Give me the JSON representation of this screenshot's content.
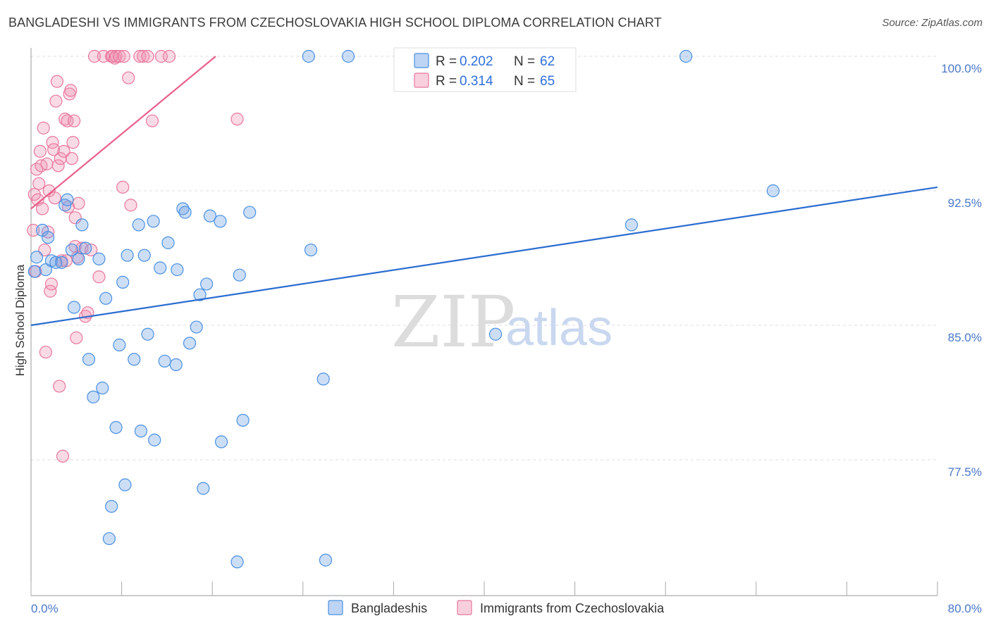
{
  "title": "BANGLADESHI VS IMMIGRANTS FROM CZECHOSLOVAKIA HIGH SCHOOL DIPLOMA CORRELATION CHART",
  "source": "Source: ZipAtlas.com",
  "watermark": {
    "zip": "ZIP",
    "atlas": "atlas"
  },
  "colors": {
    "blue": "#4a90e2",
    "blue_fill": "rgba(110,160,230,0.35)",
    "pink": "#e8789c",
    "pink_fill": "rgba(240,150,180,0.35)",
    "blue_line": "#2a6dd0",
    "pink_line": "#e8608a",
    "grid": "#dcdcdc",
    "tick_text": "#4a78c8"
  },
  "chart_data": {
    "type": "scatter",
    "xlabel": "",
    "ylabel": "High School Diploma",
    "xlim": [
      0,
      80
    ],
    "ylim": [
      71,
      100.7
    ],
    "x_tick_labels": [
      {
        "value": 0,
        "label": "0.0%"
      },
      {
        "value": 80,
        "label": "80.0%"
      }
    ],
    "x_minor_ticks": [
      0,
      8,
      16,
      24,
      32,
      40,
      48,
      56,
      64,
      72,
      80
    ],
    "y_ticks": [
      {
        "value": 100,
        "label": "100.0%"
      },
      {
        "value": 92.5,
        "label": "92.5%"
      },
      {
        "value": 85,
        "label": "85.0%"
      },
      {
        "value": 77.5,
        "label": "77.5%"
      }
    ],
    "legend": {
      "position": "top-center",
      "entries": [
        {
          "series": "blue",
          "r_label": "R =",
          "r_value": "0.202",
          "n_label": "N =",
          "n_value": "62"
        },
        {
          "series": "pink",
          "r_label": "R =",
          "r_value": "0.314",
          "n_label": "N =",
          "n_value": "65"
        }
      ]
    },
    "series": [
      {
        "name": "Bangladeshis",
        "color": "blue",
        "trend": {
          "x0": 0,
          "y0": 85.0,
          "x1": 80,
          "y1": 92.7
        },
        "points": [
          [
            0.3,
            88.0
          ],
          [
            0.5,
            88.8
          ],
          [
            1.0,
            90.3
          ],
          [
            1.3,
            88.1
          ],
          [
            1.5,
            89.9
          ],
          [
            1.8,
            88.6
          ],
          [
            2.2,
            88.5
          ],
          [
            2.7,
            88.5
          ],
          [
            3.0,
            91.7
          ],
          [
            3.2,
            92.0
          ],
          [
            3.6,
            89.2
          ],
          [
            3.8,
            86.0
          ],
          [
            4.2,
            88.7
          ],
          [
            4.5,
            90.6
          ],
          [
            4.8,
            89.3
          ],
          [
            5.1,
            83.1
          ],
          [
            5.5,
            81.0
          ],
          [
            6.0,
            88.7
          ],
          [
            6.3,
            81.5
          ],
          [
            6.6,
            86.5
          ],
          [
            6.9,
            73.1
          ],
          [
            7.1,
            74.9
          ],
          [
            7.5,
            79.3
          ],
          [
            7.8,
            83.9
          ],
          [
            8.1,
            87.4
          ],
          [
            8.3,
            76.1
          ],
          [
            8.5,
            88.9
          ],
          [
            9.1,
            83.1
          ],
          [
            9.5,
            90.6
          ],
          [
            9.7,
            79.1
          ],
          [
            10.0,
            88.9
          ],
          [
            10.3,
            84.5
          ],
          [
            10.8,
            90.8
          ],
          [
            10.9,
            78.6
          ],
          [
            11.4,
            88.2
          ],
          [
            11.8,
            83.0
          ],
          [
            12.1,
            89.6
          ],
          [
            12.8,
            82.8
          ],
          [
            12.9,
            88.1
          ],
          [
            13.4,
            91.5
          ],
          [
            13.6,
            91.3
          ],
          [
            14.0,
            84.0
          ],
          [
            14.6,
            84.9
          ],
          [
            14.9,
            86.7
          ],
          [
            15.2,
            75.9
          ],
          [
            15.5,
            87.3
          ],
          [
            15.8,
            91.1
          ],
          [
            16.7,
            90.8
          ],
          [
            16.8,
            78.5
          ],
          [
            18.2,
            71.8
          ],
          [
            18.4,
            87.8
          ],
          [
            18.7,
            79.7
          ],
          [
            19.3,
            91.3
          ],
          [
            24.7,
            89.2
          ],
          [
            24.5,
            100.0
          ],
          [
            25.8,
            82.0
          ],
          [
            26.0,
            71.9
          ],
          [
            28.0,
            100.0
          ],
          [
            41.0,
            84.5
          ],
          [
            53.0,
            90.6
          ],
          [
            57.8,
            100.0
          ],
          [
            65.5,
            92.5
          ]
        ]
      },
      {
        "name": "Immigrants from Czechoslovakia",
        "color": "pink",
        "trend": {
          "x0": 0,
          "y0": 91.5,
          "x1": 16.3,
          "y1": 100.0
        },
        "points": [
          [
            0.2,
            90.3
          ],
          [
            0.3,
            92.3
          ],
          [
            0.4,
            88.0
          ],
          [
            0.5,
            93.7
          ],
          [
            0.6,
            92.0
          ],
          [
            0.7,
            92.9
          ],
          [
            0.8,
            94.7
          ],
          [
            0.9,
            93.9
          ],
          [
            1.0,
            91.5
          ],
          [
            1.1,
            96.0
          ],
          [
            1.2,
            89.2
          ],
          [
            1.3,
            83.5
          ],
          [
            1.4,
            94.0
          ],
          [
            1.5,
            90.2
          ],
          [
            1.6,
            92.5
          ],
          [
            1.7,
            86.9
          ],
          [
            1.8,
            87.3
          ],
          [
            1.9,
            95.2
          ],
          [
            2.0,
            94.8
          ],
          [
            2.1,
            92.1
          ],
          [
            2.2,
            97.5
          ],
          [
            2.3,
            98.6
          ],
          [
            2.4,
            93.9
          ],
          [
            2.5,
            81.6
          ],
          [
            2.6,
            94.3
          ],
          [
            2.7,
            88.6
          ],
          [
            2.8,
            77.7
          ],
          [
            2.9,
            94.7
          ],
          [
            3.0,
            96.5
          ],
          [
            3.1,
            88.6
          ],
          [
            3.2,
            96.4
          ],
          [
            3.3,
            91.6
          ],
          [
            3.4,
            97.9
          ],
          [
            3.5,
            98.1
          ],
          [
            3.6,
            94.3
          ],
          [
            3.7,
            95.2
          ],
          [
            3.8,
            96.4
          ],
          [
            3.9,
            91.0
          ],
          [
            4.0,
            84.3
          ],
          [
            4.1,
            88.8
          ],
          [
            4.2,
            91.8
          ],
          [
            4.5,
            89.3
          ],
          [
            4.8,
            85.5
          ],
          [
            5.0,
            85.7
          ],
          [
            5.3,
            89.2
          ],
          [
            5.6,
            100.0
          ],
          [
            6.0,
            87.7
          ],
          [
            6.4,
            100.0
          ],
          [
            7.1,
            100.0
          ],
          [
            7.2,
            100.0
          ],
          [
            7.4,
            99.9
          ],
          [
            7.5,
            100.0
          ],
          [
            7.8,
            100.0
          ],
          [
            8.1,
            92.7
          ],
          [
            8.2,
            100.0
          ],
          [
            8.6,
            98.8
          ],
          [
            8.8,
            91.7
          ],
          [
            9.6,
            100.0
          ],
          [
            9.9,
            100.0
          ],
          [
            10.3,
            100.0
          ],
          [
            10.7,
            96.4
          ],
          [
            11.5,
            100.0
          ],
          [
            12.2,
            100.0
          ],
          [
            18.2,
            96.5
          ],
          [
            3.9,
            89.4
          ]
        ]
      }
    ],
    "bottom_legend": [
      {
        "series": "blue",
        "label": "Bangladeshis"
      },
      {
        "series": "pink",
        "label": "Immigrants from Czechoslovakia"
      }
    ]
  }
}
